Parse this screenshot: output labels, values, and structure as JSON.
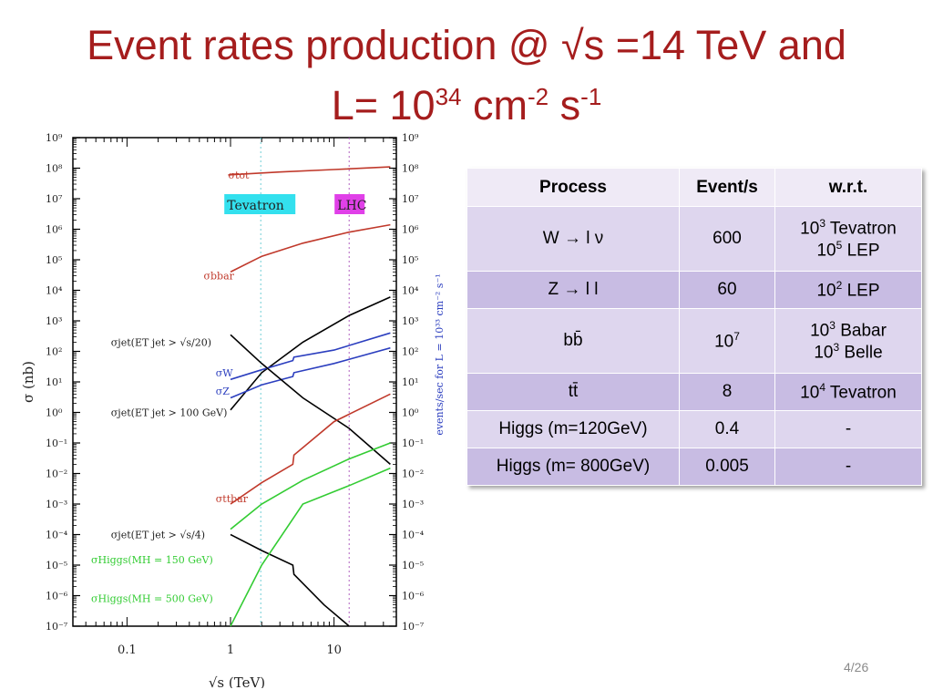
{
  "slide": {
    "title_line1": "Event rates production @ √s =14 TeV and",
    "title_line2_base": "L=  10",
    "title_line2_exp1": "34",
    "title_line2_unit1": " cm",
    "title_line2_exp2": "-2",
    "title_line2_unit2": " s",
    "title_line2_exp3": "-1",
    "page_number": "4/26"
  },
  "table": {
    "headers": [
      "Process",
      "Event/s",
      "w.r.t."
    ],
    "rows": [
      {
        "process": "W → l ν",
        "rate_base": "600",
        "rate_exp": "",
        "wrt": [
          {
            "base": "10",
            "exp": "3",
            "text": " Tevatron"
          },
          {
            "base": "10",
            "exp": "5",
            "text": " LEP"
          }
        ]
      },
      {
        "process": "Z → l l",
        "rate_base": "60",
        "rate_exp": "",
        "wrt": [
          {
            "base": "10",
            "exp": "2",
            "text": " LEP"
          }
        ]
      },
      {
        "process": "bb̄",
        "rate_base": "10",
        "rate_exp": "7",
        "wrt": [
          {
            "base": "10",
            "exp": "3",
            "text": " Babar"
          },
          {
            "base": "10",
            "exp": "3",
            "text": " Belle"
          }
        ]
      },
      {
        "process": "tt̄",
        "rate_base": "8",
        "rate_exp": "",
        "wrt": [
          {
            "base": "10",
            "exp": "4",
            "text": " Tevatron"
          }
        ]
      },
      {
        "process": "Higgs (m=120GeV)",
        "rate_base": "0.4",
        "rate_exp": "",
        "wrt": [
          {
            "base": "-",
            "exp": "",
            "text": ""
          }
        ]
      },
      {
        "process": "Higgs (m= 800GeV)",
        "rate_base": "0.005",
        "rate_exp": "",
        "wrt": [
          {
            "base": "-",
            "exp": "",
            "text": ""
          }
        ]
      }
    ]
  },
  "chart_data": {
    "type": "line",
    "xlabel": "√s (TeV)",
    "ylabel": "σ (nb)",
    "ylabel_right": "events/sec  for  L = 10³³ cm⁻² s⁻¹",
    "xscale": "log",
    "yscale": "log",
    "xlim": [
      0.03,
      40
    ],
    "ylim": [
      1e-07,
      1000000000.0
    ],
    "x_ticks": [
      {
        "v": 0.1,
        "label": "0.1"
      },
      {
        "v": 1,
        "label": "1"
      },
      {
        "v": 10,
        "label": "10"
      }
    ],
    "y_ticks_exp": [
      9,
      8,
      7,
      6,
      5,
      4,
      3,
      2,
      1,
      0,
      -1,
      -2,
      -3,
      -4,
      -5,
      -6,
      -7
    ],
    "markers": [
      {
        "label": "Tevatron",
        "x": 1.96,
        "color": "#33e0ee",
        "line": "#6fcfd6"
      },
      {
        "label": "LHC",
        "x": 14,
        "color": "#e040e8",
        "line": "#b060c0"
      }
    ],
    "series": [
      {
        "name": "σtot",
        "color": "#c0392b",
        "label_x": 0.95,
        "label_y": 60000000.0,
        "x": [
          0.95,
          3,
          10,
          35
        ],
        "y": [
          60000000.0,
          75000000.0,
          90000000.0,
          110000000.0
        ]
      },
      {
        "name": "σbbar",
        "color": "#c0392b",
        "label_x": 0.55,
        "label_y": 30000.0,
        "x": [
          1,
          2,
          5,
          14,
          35
        ],
        "y": [
          40000.0,
          130000.0,
          350000.0,
          800000.0,
          1400000.0
        ]
      },
      {
        "name": "σjet(ET jet > √s/20)",
        "color": "#000000",
        "label_x": 0.07,
        "label_y": 200,
        "x": [
          1,
          2,
          5,
          14,
          35
        ],
        "y": [
          1.2,
          20,
          200,
          1500,
          6000
        ]
      },
      {
        "name": "σW",
        "color": "#2c3fbf",
        "label_x": 0.72,
        "label_y": 20,
        "x": [
          1,
          2,
          4,
          4.1,
          10,
          35
        ],
        "y": [
          12,
          25,
          50,
          65,
          110,
          400
        ]
      },
      {
        "name": "σZ",
        "color": "#2c3fbf",
        "label_x": 0.72,
        "label_y": 5,
        "x": [
          1,
          2,
          4,
          4.1,
          10,
          35
        ],
        "y": [
          3,
          8,
          15,
          20,
          40,
          130
        ]
      },
      {
        "name": "σjet(ET jet > 100 GeV)",
        "color": "#000000",
        "label_x": 0.07,
        "label_y": 1,
        "x": [
          1,
          2,
          5,
          14,
          35
        ],
        "y": [
          350,
          40,
          3,
          0.3,
          0.02
        ]
      },
      {
        "name": "σttbar",
        "color": "#c0392b",
        "label_x": 0.72,
        "label_y": 0.0015,
        "x": [
          1,
          2,
          4,
          4.1,
          10,
          35
        ],
        "y": [
          0.001,
          0.005,
          0.02,
          0.04,
          0.5,
          4
        ]
      },
      {
        "name": "σjet(ET jet > √s/4)",
        "color": "#000000",
        "label_x": 0.07,
        "label_y": 0.0001,
        "x": [
          1,
          2,
          4,
          4.1,
          8,
          14
        ],
        "y": [
          0.0001,
          3e-05,
          1e-05,
          5e-06,
          5e-07,
          1e-07
        ]
      },
      {
        "name": "σHiggs(MH = 150 GeV)",
        "color": "#33cc33",
        "label_x": 0.045,
        "label_y": 1.5e-05,
        "x": [
          1,
          2,
          5,
          14,
          35
        ],
        "y": [
          0.00015,
          0.001,
          0.006,
          0.03,
          0.1
        ]
      },
      {
        "name": "σHiggs(MH = 500 GeV)",
        "color": "#33cc33",
        "label_x": 0.045,
        "label_y": 8e-07,
        "x": [
          1,
          2,
          5,
          14,
          35
        ],
        "y": [
          1e-07,
          1e-05,
          0.001,
          0.004,
          0.015
        ]
      }
    ]
  }
}
